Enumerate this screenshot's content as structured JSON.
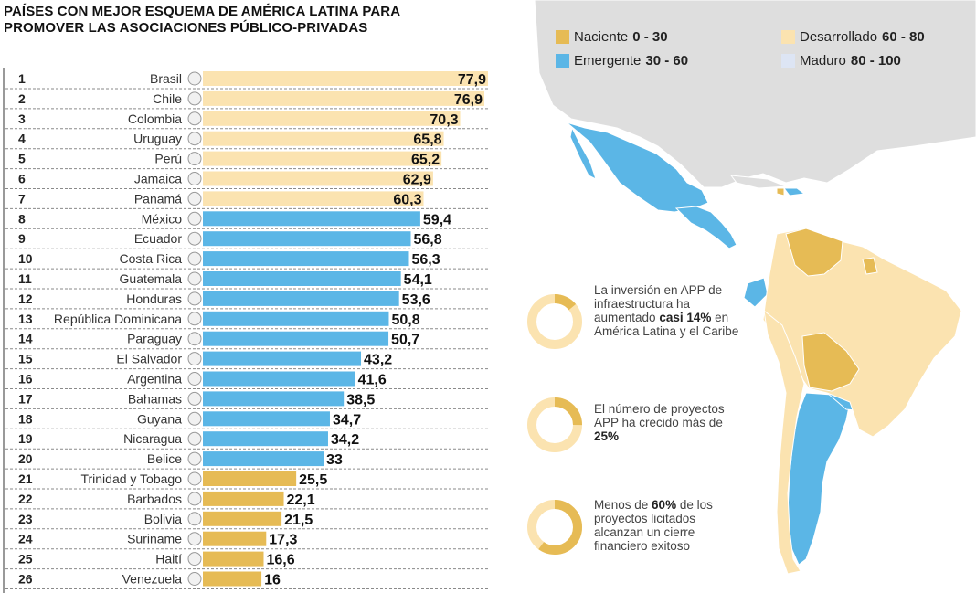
{
  "title_lines": [
    "PAÍSES CON MEJOR ESQUEMA DE AMÉRICA LATINA PARA",
    "PROMOVER LAS ASOCIACIONES PÚBLICO-PRIVADAS"
  ],
  "colors": {
    "naciente": "#e6bb55",
    "emergente": "#5bb6e6",
    "desarrollado": "#fbe3b0",
    "maduro": "#dde5f4",
    "land_other": "#dedede"
  },
  "legend": [
    {
      "key": "naciente",
      "label": "Naciente",
      "range": "0 - 30",
      "color": "#e6bb55"
    },
    {
      "key": "emergente",
      "label": "Emergente",
      "range": "30 - 60",
      "color": "#5bb6e6"
    },
    {
      "key": "desarrollado",
      "label": "Desarrollado",
      "range": "60 - 80",
      "color": "#fbe3b0"
    },
    {
      "key": "maduro",
      "label": "Maduro",
      "range": "80 - 100",
      "color": "#dde5f4"
    }
  ],
  "chart_data": {
    "type": "bar",
    "orientation": "horizontal",
    "xlim": [
      0,
      100
    ],
    "rows": [
      {
        "rank": "1",
        "country": "Brasil",
        "value": 77.9,
        "label": "77,9"
      },
      {
        "rank": "2",
        "country": "Chile",
        "value": 76.9,
        "label": "76,9"
      },
      {
        "rank": "3",
        "country": "Colombia",
        "value": 70.3,
        "label": "70,3"
      },
      {
        "rank": "4",
        "country": "Uruguay",
        "value": 65.8,
        "label": "65,8"
      },
      {
        "rank": "5",
        "country": "Perú",
        "value": 65.2,
        "label": "65,2"
      },
      {
        "rank": "6",
        "country": "Jamaica",
        "value": 62.9,
        "label": "62,9"
      },
      {
        "rank": "7",
        "country": "Panamá",
        "value": 60.3,
        "label": "60,3"
      },
      {
        "rank": "8",
        "country": "México",
        "value": 59.4,
        "label": "59,4"
      },
      {
        "rank": "9",
        "country": "Ecuador",
        "value": 56.8,
        "label": "56,8"
      },
      {
        "rank": "10",
        "country": "Costa Rica",
        "value": 56.3,
        "label": "56,3"
      },
      {
        "rank": "11",
        "country": "Guatemala",
        "value": 54.1,
        "label": "54,1"
      },
      {
        "rank": "12",
        "country": "Honduras",
        "value": 53.6,
        "label": "53,6"
      },
      {
        "rank": "13",
        "country": "República Dominicana",
        "value": 50.8,
        "label": "50,8"
      },
      {
        "rank": "14",
        "country": "Paraguay",
        "value": 50.7,
        "label": "50,7"
      },
      {
        "rank": "15",
        "country": "El Salvador",
        "value": 43.2,
        "label": "43,2"
      },
      {
        "rank": "16",
        "country": "Argentina",
        "value": 41.6,
        "label": "41,6"
      },
      {
        "rank": "17",
        "country": "Bahamas",
        "value": 38.5,
        "label": "38,5"
      },
      {
        "rank": "18",
        "country": "Guyana",
        "value": 34.7,
        "label": "34,7"
      },
      {
        "rank": "19",
        "country": "Nicaragua",
        "value": 34.2,
        "label": "34,2"
      },
      {
        "rank": "20",
        "country": "Belice",
        "value": 33,
        "label": "33"
      },
      {
        "rank": "21",
        "country": "Trinidad y Tobago",
        "value": 25.5,
        "label": "25,5"
      },
      {
        "rank": "22",
        "country": "Barbados",
        "value": 22.1,
        "label": "22,1"
      },
      {
        "rank": "23",
        "country": "Bolivia",
        "value": 21.5,
        "label": "21,5"
      },
      {
        "rank": "24",
        "country": "Suriname",
        "value": 17.3,
        "label": "17,3"
      },
      {
        "rank": "25",
        "country": "Haití",
        "value": 16.6,
        "label": "16,6"
      },
      {
        "rank": "26",
        "country": "Venezuela",
        "value": 16,
        "label": "16"
      }
    ]
  },
  "stats": [
    {
      "fraction": 0.14,
      "parts": [
        {
          "t": "La inversión en APP de infraestructura ha aumentado "
        },
        {
          "t": "casi 14%",
          "b": true
        },
        {
          "t": " en América Latina y el Caribe"
        }
      ]
    },
    {
      "fraction": 0.25,
      "parts": [
        {
          "t": "El número de proyectos APP ha crecido más de "
        },
        {
          "t": "25%",
          "b": true
        }
      ]
    },
    {
      "fraction": 0.6,
      "parts": [
        {
          "t": "Menos de "
        },
        {
          "t": "60%",
          "b": true
        },
        {
          "t": " de los proyectos licitados alcanzan un cierre financiero exitoso"
        }
      ]
    }
  ]
}
